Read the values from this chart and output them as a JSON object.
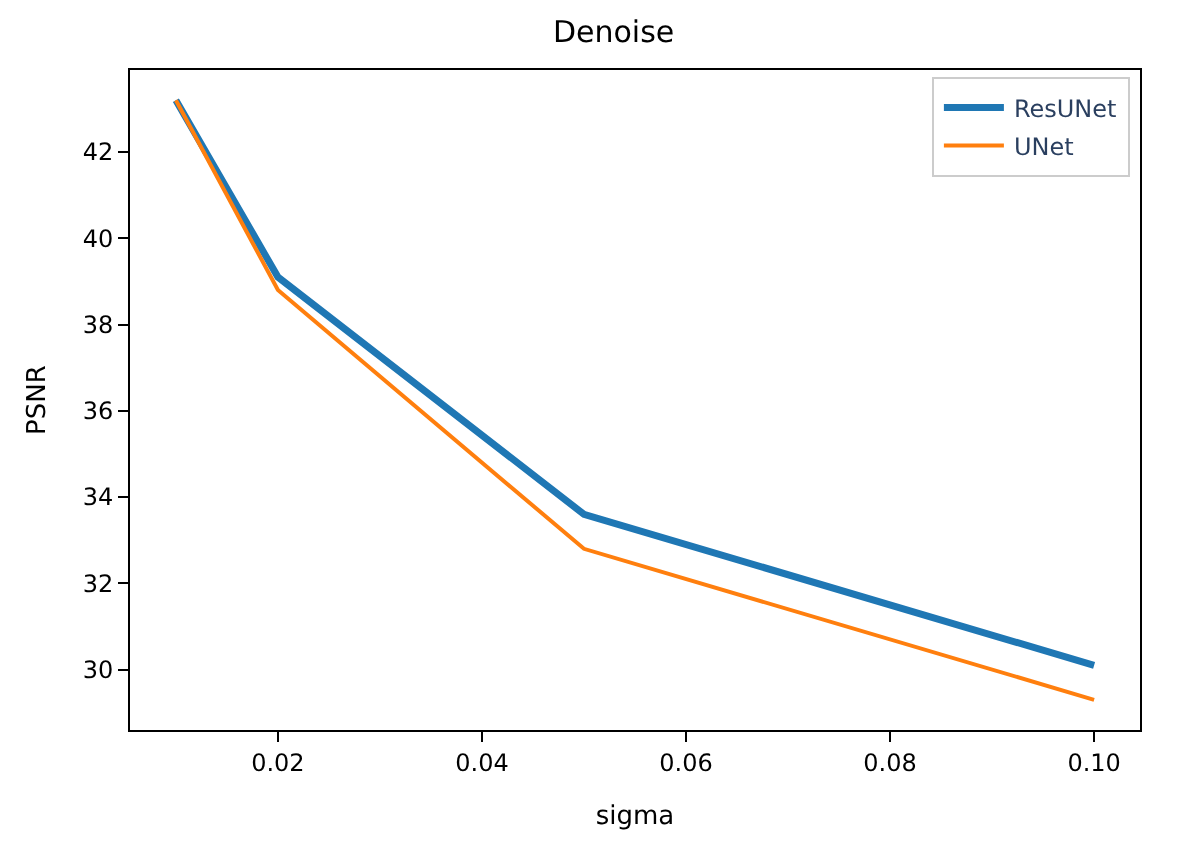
{
  "chart_data": {
    "type": "line",
    "title": "Denoise",
    "xlabel": "sigma",
    "ylabel": "PSNR",
    "x": [
      0.01,
      0.02,
      0.05,
      0.1
    ],
    "series": [
      {
        "name": "ResUNet",
        "color": "#1f77b4",
        "values": [
          43.2,
          39.1,
          33.6,
          30.1
        ]
      },
      {
        "name": "UNet",
        "color": "#ff7f0e",
        "values": [
          43.2,
          38.8,
          32.8,
          29.3
        ]
      }
    ],
    "xlim": [
      0.0055,
      0.1045
    ],
    "ylim": [
      28.6,
      43.9
    ],
    "xticks": [
      {
        "value": 0.02,
        "label": "0.02"
      },
      {
        "value": 0.04,
        "label": "0.04"
      },
      {
        "value": 0.06,
        "label": "0.06"
      },
      {
        "value": 0.08,
        "label": "0.08"
      },
      {
        "value": 0.1,
        "label": "0.10"
      }
    ],
    "yticks": [
      30,
      32,
      34,
      36,
      38,
      40,
      42
    ],
    "legend": "top right",
    "marker": "none",
    "line_style": "solid"
  }
}
